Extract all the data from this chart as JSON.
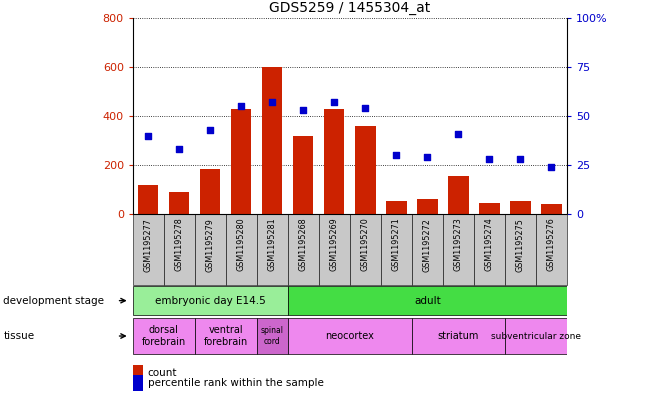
{
  "title": "GDS5259 / 1455304_at",
  "samples": [
    "GSM1195277",
    "GSM1195278",
    "GSM1195279",
    "GSM1195280",
    "GSM1195281",
    "GSM1195268",
    "GSM1195269",
    "GSM1195270",
    "GSM1195271",
    "GSM1195272",
    "GSM1195273",
    "GSM1195274",
    "GSM1195275",
    "GSM1195276"
  ],
  "counts": [
    120,
    90,
    185,
    430,
    600,
    320,
    430,
    360,
    55,
    60,
    155,
    45,
    55,
    40
  ],
  "percentiles": [
    40,
    33,
    43,
    55,
    57,
    53,
    57,
    54,
    30,
    29,
    41,
    28,
    28,
    24
  ],
  "ylim_left": [
    0,
    800
  ],
  "ylim_right": [
    0,
    100
  ],
  "yticks_left": [
    0,
    200,
    400,
    600,
    800
  ],
  "yticks_right": [
    0,
    25,
    50,
    75,
    100
  ],
  "bar_color": "#cc2200",
  "scatter_color": "#0000cc",
  "xtick_bg": "#c8c8c8",
  "dev_stage_groups": [
    {
      "label": "embryonic day E14.5",
      "start": 0,
      "end": 5,
      "color": "#99ee99"
    },
    {
      "label": "adult",
      "start": 5,
      "end": 14,
      "color": "#44dd44"
    }
  ],
  "tissue_groups": [
    {
      "label": "dorsal\nforebrain",
      "start": 0,
      "end": 2,
      "color": "#ee88ee"
    },
    {
      "label": "ventral\nforebrain",
      "start": 2,
      "end": 4,
      "color": "#ee88ee"
    },
    {
      "label": "spinal\ncord",
      "start": 4,
      "end": 5,
      "color": "#cc66cc"
    },
    {
      "label": "neocortex",
      "start": 5,
      "end": 9,
      "color": "#ee88ee"
    },
    {
      "label": "striatum",
      "start": 9,
      "end": 12,
      "color": "#ee88ee"
    },
    {
      "label": "subventricular zone",
      "start": 12,
      "end": 14,
      "color": "#ee88ee"
    }
  ],
  "bg_color": "#ffffff",
  "bar_color_legend": "#cc2200",
  "scatter_color_legend": "#0000cc",
  "legend_count_label": "count",
  "legend_pct_label": "percentile rank within the sample",
  "dev_stage_label": "development stage",
  "tissue_label": "tissue"
}
